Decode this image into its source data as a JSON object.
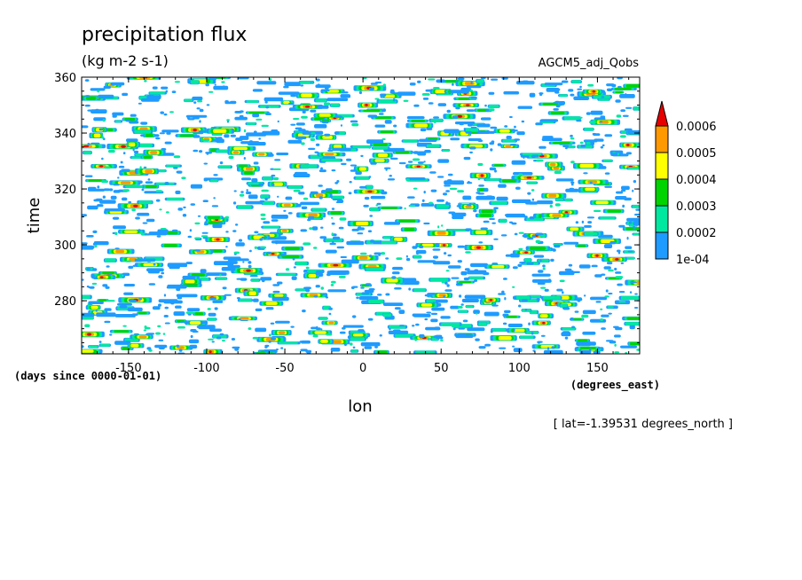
{
  "chart_data": {
    "type": "heatmap",
    "title": "precipitation flux",
    "units": "(kg m-2 s-1)",
    "dataset": "AGCM5_adj_Qobs",
    "xlabel": "lon",
    "ylabel": "time",
    "x_units": "(degrees_east)",
    "y_units": "(days since 0000-01-01)",
    "annotation": "[ lat=-1.39531 degrees_north ]",
    "xlim": [
      -180,
      177
    ],
    "ylim": [
      261,
      360
    ],
    "x_ticks": [
      -150,
      -100,
      -50,
      0,
      50,
      100,
      150
    ],
    "x_tick_labels": [
      "-150",
      "-100",
      "-50",
      "0",
      "50",
      "100",
      "150"
    ],
    "y_ticks": [
      280,
      300,
      320,
      340,
      360
    ],
    "y_tick_labels": [
      "280",
      "300",
      "320",
      "340",
      "360"
    ],
    "colorbar": {
      "levels": [
        0.0001,
        0.0002,
        0.0003,
        0.0004,
        0.0005,
        0.0006
      ],
      "level_labels": [
        "1e-04",
        "0.0002",
        "0.0003",
        "0.0004",
        "0.0005",
        "0.0006"
      ],
      "colors": [
        "#1e9bff",
        "#00e8a0",
        "#00d400",
        "#ffff00",
        "#ff9900",
        "#e60000"
      ],
      "extend": "max"
    },
    "grid": false
  }
}
